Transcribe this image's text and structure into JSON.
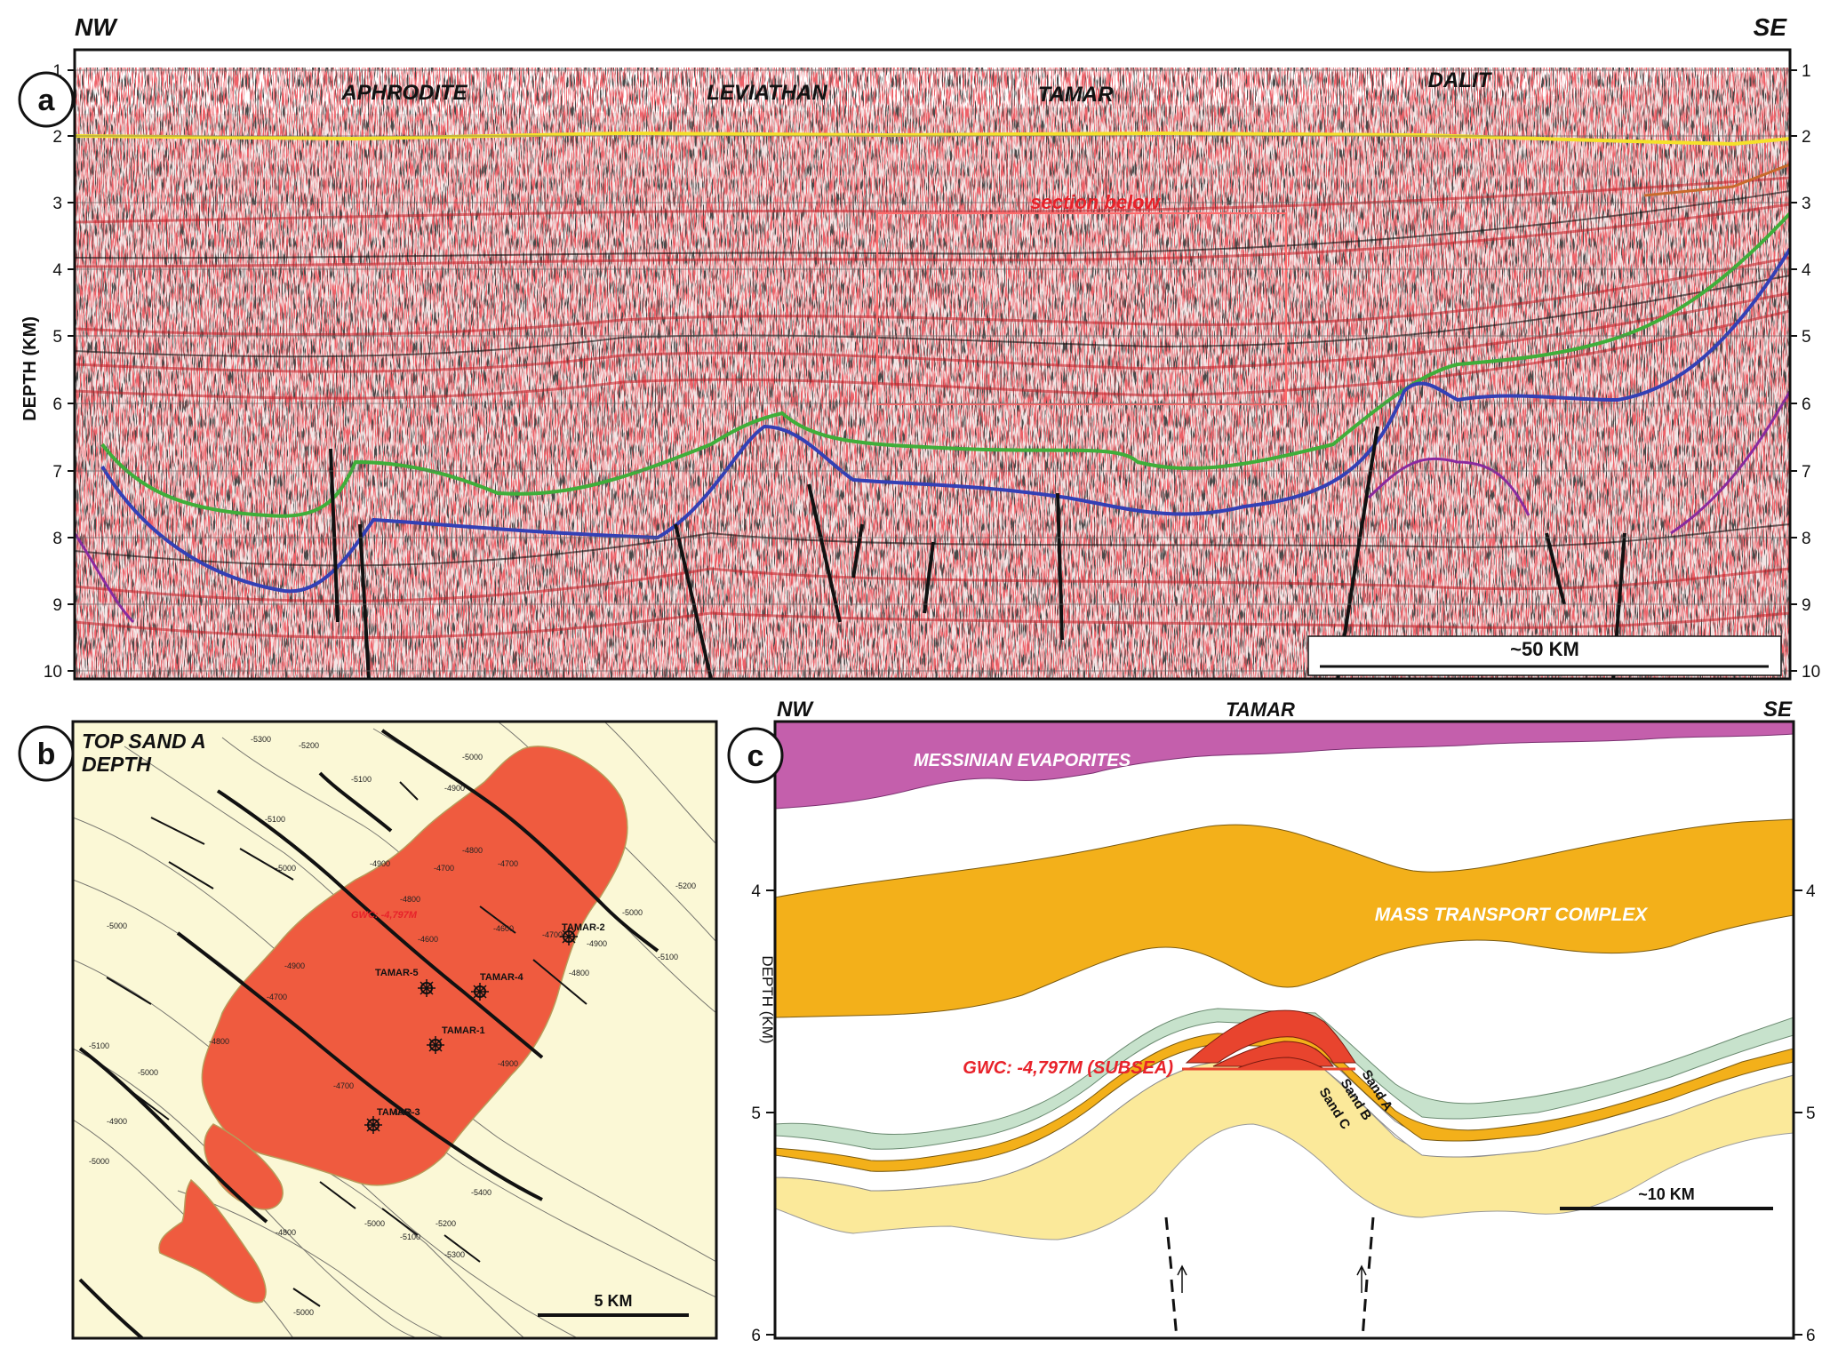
{
  "panel_a": {
    "letter": "a",
    "orient_left": "NW",
    "orient_right": "SE",
    "axis_label": "DEPTH (KM)",
    "depth_ticks": [
      "1",
      "2",
      "3",
      "4",
      "5",
      "6",
      "7",
      "8",
      "9",
      "10"
    ],
    "fields": [
      "APHRODITE",
      "LEVIATHAN",
      "TAMAR",
      "DALIT"
    ],
    "box_label": "section below",
    "scale_label": "~50 KM",
    "colors": {
      "yellow": "#f5e12a",
      "green": "#3fae3a",
      "blue": "#3340b5",
      "purple": "#8a2a9e",
      "orange": "#c86a2c",
      "seismic_red": "#d8232a"
    }
  },
  "panel_b": {
    "letter": "b",
    "title_line1": "TOP SAND A",
    "title_line2": "DEPTH",
    "gwc_label": "GWC: -4,797M",
    "wells": [
      "TAMAR-2",
      "TAMAR-5",
      "TAMAR-4",
      "TAMAR-1",
      "TAMAR-3"
    ],
    "contours": [
      "-5300",
      "-5200",
      "-5100",
      "-5000",
      "-4900",
      "-4800",
      "-4700",
      "-4600",
      "-5100",
      "-5000",
      "-4900",
      "-4800",
      "-4700",
      "-4600",
      "-4700",
      "-4800",
      "-4900",
      "-5000",
      "-5100",
      "-5200",
      "-4900",
      "-5000",
      "-5100",
      "-4800",
      "-5000",
      "-5000",
      "-4900",
      "-5000",
      "-5100",
      "-5200",
      "-5300",
      "-5400",
      "-4800",
      "-4700",
      "-4600",
      "-4700",
      "-4900",
      "-5000"
    ],
    "scale_label": "5 KM",
    "colors": {
      "background": "#fbf8d6",
      "closure": "#ef5b3f"
    }
  },
  "panel_c": {
    "letter": "c",
    "orient_left": "NW",
    "orient_right": "SE",
    "title": "TAMAR",
    "axis_label": "DEPTH (KM)",
    "depth_ticks": [
      "4",
      "5",
      "6"
    ],
    "units": {
      "evaporites": "MESSINIAN EVAPORITES",
      "mtc": "MASS TRANSPORT COMPLEX",
      "sand_a": "Sand A",
      "sand_b": "Sand B",
      "sand_c": "Sand C"
    },
    "gwc_label": "GWC: -4,797M (SUBSEA)",
    "scale_label": "~10 KM",
    "colors": {
      "evaporites": "#c45fac",
      "mtc": "#f3b01a",
      "sand_green": "#c7e2cc",
      "sand_orange": "#f3b01a",
      "sand_yellow": "#fbe99a",
      "gas": "#e8442e"
    }
  }
}
